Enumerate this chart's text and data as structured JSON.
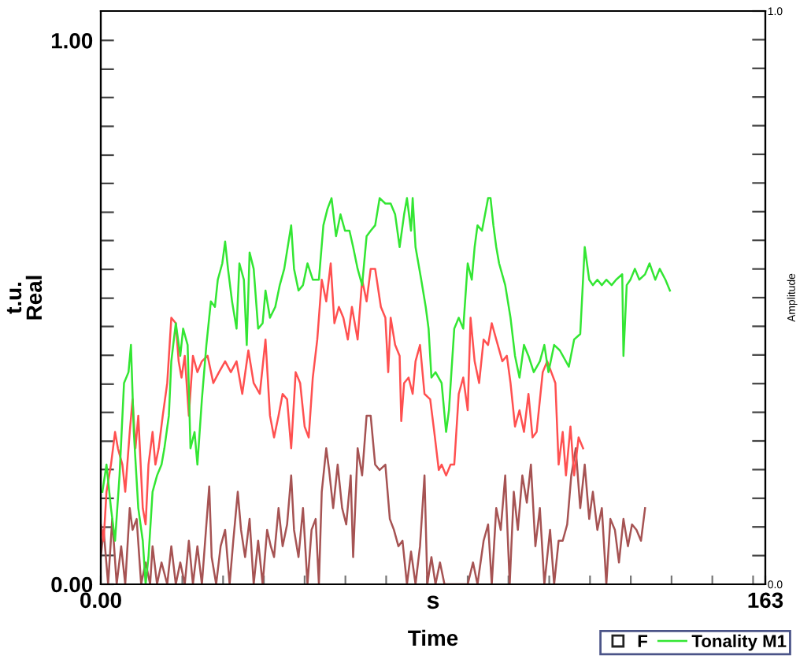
{
  "chart_data": {
    "type": "line",
    "xlabel": "Time",
    "ylabel": "t.u.\nReal",
    "y2label": "Amplitude",
    "annotations": [
      "s",
      "F"
    ],
    "xlim": [
      0,
      163
    ],
    "ylim": [
      0,
      1.054
    ],
    "y2lim": [
      0,
      1
    ],
    "xticks": [
      {
        "value": 0,
        "label": "0.00"
      },
      {
        "value": 10,
        "label": null
      },
      {
        "value": 20,
        "label": null
      },
      {
        "value": 30,
        "label": null
      },
      {
        "value": 40,
        "label": null
      },
      {
        "value": 50,
        "label": null
      },
      {
        "value": 60,
        "label": null
      },
      {
        "value": 70,
        "label": null
      },
      {
        "value": 80,
        "label": null
      },
      {
        "value": 90,
        "label": null
      },
      {
        "value": 100,
        "label": null
      },
      {
        "value": 110,
        "label": null
      },
      {
        "value": 120,
        "label": null
      },
      {
        "value": 130,
        "label": null
      },
      {
        "value": 140,
        "label": null
      },
      {
        "value": 150,
        "label": null
      },
      {
        "value": 160,
        "label": null
      },
      {
        "value": 163,
        "label": "163"
      }
    ],
    "yticks": [
      {
        "value": 0,
        "label": "0.00"
      },
      {
        "value": 0.053,
        "label": null
      },
      {
        "value": 0.105,
        "label": null
      },
      {
        "value": 0.158,
        "label": null
      },
      {
        "value": 0.211,
        "label": null
      },
      {
        "value": 0.263,
        "label": null
      },
      {
        "value": 0.316,
        "label": null
      },
      {
        "value": 0.368,
        "label": null
      },
      {
        "value": 0.421,
        "label": null
      },
      {
        "value": 0.474,
        "label": null
      },
      {
        "value": 0.526,
        "label": null
      },
      {
        "value": 0.579,
        "label": null
      },
      {
        "value": 0.632,
        "label": null
      },
      {
        "value": 0.684,
        "label": null
      },
      {
        "value": 0.737,
        "label": null
      },
      {
        "value": 0.789,
        "label": null
      },
      {
        "value": 0.842,
        "label": null
      },
      {
        "value": 0.895,
        "label": null
      },
      {
        "value": 0.947,
        "label": null
      },
      {
        "value": 1,
        "label": "1.00"
      }
    ],
    "y2ticks": [
      {
        "value": 0,
        "label": "0.0"
      },
      {
        "value": 0.05,
        "label": null
      },
      {
        "value": 0.1,
        "label": null
      },
      {
        "value": 0.15,
        "label": null
      },
      {
        "value": 0.2,
        "label": null
      },
      {
        "value": 0.25,
        "label": null
      },
      {
        "value": 0.3,
        "label": null
      },
      {
        "value": 0.35,
        "label": null
      },
      {
        "value": 0.4,
        "label": null
      },
      {
        "value": 0.45,
        "label": null
      },
      {
        "value": 0.5,
        "label": null
      },
      {
        "value": 0.55,
        "label": null
      },
      {
        "value": 0.6,
        "label": null
      },
      {
        "value": 0.65,
        "label": null
      },
      {
        "value": 0.7,
        "label": null
      },
      {
        "value": 0.75,
        "label": null
      },
      {
        "value": 0.8,
        "label": null
      },
      {
        "value": 0.85,
        "label": null
      },
      {
        "value": 0.9,
        "label": null
      },
      {
        "value": 0.95,
        "label": null
      },
      {
        "value": 1,
        "label": "1.0"
      }
    ],
    "grid": false,
    "legend": "bottom right",
    "line_style": "solid",
    "marker": "none",
    "series": [
      {
        "color": "#a65353",
        "x": [
          0.0,
          0.7,
          1.8,
          2.8,
          3.9,
          5.0,
          6.0,
          7.1,
          7.8,
          8.8,
          9.9,
          11.0,
          12.1,
          12.7,
          13.8,
          14.9,
          16.3,
          17.3,
          18.4,
          19.5,
          20.6,
          21.6,
          22.6,
          23.7,
          24.8,
          25.9,
          26.6,
          27.2,
          28.3,
          29.4,
          30.5,
          31.6,
          32.5,
          33.6,
          34.4,
          35.4,
          36.5,
          37.5,
          38.6,
          39.7,
          40.8,
          41.7,
          42.5,
          43.6,
          44.6,
          45.7,
          46.7,
          47.4,
          48.5,
          49.6,
          50.7,
          51.7,
          52.7,
          53.5,
          54.2,
          55.3,
          56.0,
          57.0,
          58.1,
          59.2,
          60.2,
          61.3,
          61.9,
          63.0,
          64.1,
          65.2,
          66.2,
          67.3,
          68.4,
          69.8,
          70.9,
          71.9,
          73.0,
          74.0,
          75.1,
          76.1,
          77.2,
          78.3,
          79.4,
          80.1,
          81.1,
          82.1,
          83.2,
          84.3,
          90.0,
          91.3,
          92.4,
          93.9,
          95.0,
          95.9,
          97.0,
          98.1,
          99.2,
          100.3,
          101.3,
          102.3,
          103.4,
          104.5,
          105.5,
          106.6,
          107.7,
          108.8,
          110.2,
          111.2,
          112.3,
          113.3,
          114.4,
          115.4,
          116.5,
          117.6,
          118.7,
          119.8,
          120.7,
          121.8,
          122.9,
          124.0,
          125.0,
          126.1,
          127.1,
          128.2,
          129.3,
          130.3,
          131.4,
          132.5,
          133.5
        ],
        "values": [
          0.05,
          0.1,
          0,
          0.12,
          0,
          0.07,
          0,
          0.14,
          0.1,
          0.12,
          0,
          0.04,
          0,
          0.07,
          0,
          0.04,
          0,
          0.07,
          0,
          0.04,
          0,
          0.08,
          0,
          0.07,
          0,
          0.11,
          0.18,
          0.05,
          0,
          0.07,
          0.1,
          0,
          0.08,
          0.17,
          0.1,
          0.05,
          0.12,
          0,
          0.08,
          0,
          0.1,
          0.07,
          0.05,
          0.14,
          0.07,
          0.11,
          0.2,
          0.1,
          0.05,
          0.14,
          0,
          0.1,
          0.12,
          0,
          0.17,
          0.25,
          0.21,
          0.14,
          0.22,
          0.14,
          0.11,
          0.2,
          0.05,
          0.25,
          0.2,
          0.31,
          0.31,
          0.22,
          0.21,
          0.22,
          0.12,
          0.1,
          0.07,
          0.08,
          0,
          0.06,
          0,
          0.07,
          0.2,
          0,
          0.05,
          0,
          0.04,
          0,
          0,
          0.04,
          0,
          0.08,
          0.11,
          0,
          0.14,
          0.1,
          0.2,
          0,
          0.17,
          0.1,
          0.2,
          0.15,
          0.22,
          0.07,
          0.14,
          0,
          0.1,
          0,
          0.08,
          0.08,
          0.11,
          0.2,
          0.25,
          0.14,
          0.22,
          0.12,
          0.17,
          0.1,
          0.14,
          0,
          0.12,
          0.1,
          0.04,
          0.12,
          0.07,
          0.11,
          0.1,
          0.08,
          0.14
        ]
      },
      {
        "color": "#ff5050",
        "x": [
          0.0,
          0.7,
          1.4,
          2.5,
          3.5,
          4.2,
          5.3,
          6.0,
          7.1,
          7.8,
          8.5,
          9.2,
          10.3,
          11.0,
          11.7,
          12.7,
          13.4,
          14.2,
          15.2,
          16.3,
          17.3,
          18.4,
          19.1,
          19.8,
          20.6,
          21.6,
          22.6,
          23.7,
          24.8,
          26.2,
          27.6,
          29.0,
          30.5,
          31.9,
          33.3,
          34.7,
          36.2,
          37.5,
          39.0,
          40.4,
          41.5,
          42.5,
          43.6,
          44.6,
          45.7,
          46.7,
          47.8,
          48.9,
          50.0,
          51.0,
          52.0,
          53.1,
          54.2,
          55.3,
          56.4,
          57.3,
          58.4,
          59.5,
          60.6,
          61.6,
          63.0,
          64.1,
          65.2,
          66.2,
          67.3,
          68.7,
          69.8,
          70.5,
          71.1,
          72.2,
          73.3,
          73.7,
          74.4,
          75.5,
          76.5,
          77.2,
          78.3,
          79.4,
          80.8,
          81.8,
          82.9,
          83.6,
          84.7,
          85.8,
          86.7,
          87.8,
          88.9,
          90.0,
          90.7,
          91.7,
          92.8,
          93.9,
          95.0,
          95.9,
          97.0,
          98.5,
          99.6,
          100.5,
          101.6,
          102.7,
          103.8,
          104.9,
          105.9,
          106.9,
          108.4,
          109.5,
          110.5,
          111.5,
          112.3,
          113.3,
          114.1,
          115.2,
          116.1,
          117.2,
          118.3
        ],
        "values": [
          0.11,
          0.08,
          0.17,
          0.22,
          0.28,
          0.25,
          0.22,
          0.17,
          0.28,
          0.34,
          0.25,
          0.31,
          0.14,
          0.11,
          0.22,
          0.28,
          0.22,
          0.25,
          0.31,
          0.37,
          0.49,
          0.48,
          0.41,
          0.38,
          0.42,
          0.31,
          0.42,
          0.39,
          0.41,
          0.42,
          0.37,
          0.39,
          0.41,
          0.39,
          0.41,
          0.35,
          0.43,
          0.37,
          0.35,
          0.45,
          0.31,
          0.27,
          0.31,
          0.35,
          0.34,
          0.25,
          0.39,
          0.37,
          0.29,
          0.27,
          0.38,
          0.45,
          0.56,
          0.52,
          0.59,
          0.48,
          0.51,
          0.49,
          0.45,
          0.51,
          0.45,
          0.56,
          0.52,
          0.58,
          0.58,
          0.51,
          0.49,
          0.39,
          0.49,
          0.44,
          0.42,
          0.3,
          0.37,
          0.38,
          0.35,
          0.41,
          0.44,
          0.35,
          0.34,
          0.28,
          0.21,
          0.22,
          0.2,
          0.22,
          0.22,
          0.35,
          0.38,
          0.32,
          0.49,
          0.41,
          0.37,
          0.45,
          0.44,
          0.48,
          0.45,
          0.41,
          0.42,
          0.37,
          0.29,
          0.32,
          0.28,
          0.35,
          0.27,
          0.28,
          0.39,
          0.41,
          0.39,
          0.37,
          0.22,
          0.28,
          0.2,
          0.29,
          0.2,
          0.27,
          0.25
        ]
      },
      {
        "name": "Tonality M1",
        "color": "#33e633",
        "x": [
          0.4,
          1.4,
          2.5,
          3.5,
          4.6,
          5.7,
          6.8,
          7.4,
          8.1,
          9.2,
          10.3,
          11.0,
          11.7,
          12.7,
          13.8,
          14.9,
          15.6,
          16.7,
          17.3,
          18.4,
          19.5,
          20.2,
          21.3,
          22.0,
          23.0,
          23.7,
          24.8,
          25.9,
          27.0,
          28.0,
          28.7,
          29.8,
          30.5,
          31.2,
          32.2,
          33.3,
          34.0,
          35.1,
          35.8,
          36.5,
          37.5,
          38.6,
          39.7,
          40.4,
          41.5,
          42.8,
          43.9,
          45.0,
          46.7,
          47.4,
          48.5,
          49.6,
          50.7,
          52.0,
          53.5,
          54.6,
          55.6,
          56.6,
          57.7,
          58.8,
          59.9,
          61.0,
          61.9,
          63.0,
          64.1,
          65.2,
          66.2,
          67.3,
          68.4,
          69.8,
          71.1,
          72.2,
          73.3,
          74.4,
          75.1,
          76.1,
          76.5,
          77.2,
          78.6,
          79.7,
          80.4,
          81.1,
          82.1,
          83.6,
          84.7,
          85.4,
          86.0,
          86.7,
          87.8,
          88.9,
          90.0,
          91.0,
          91.7,
          92.4,
          93.5,
          95.0,
          95.6,
          96.3,
          97.0,
          97.7,
          99.2,
          100.5,
          101.6,
          102.7,
          103.8,
          104.9,
          106.2,
          107.7,
          108.8,
          109.8,
          111.2,
          112.6,
          114.8,
          116.1,
          117.6,
          118.7,
          119.8,
          120.7,
          121.8,
          122.9,
          124.0,
          125.3,
          126.4,
          127.9,
          128.2,
          129.0,
          129.9,
          131.0,
          132.1,
          133.5,
          134.6,
          136.0,
          137.1,
          138.5,
          139.6
        ],
        "values": [
          0.17,
          0.22,
          0.14,
          0.08,
          0.2,
          0.37,
          0.39,
          0.44,
          0.28,
          0.14,
          0.08,
          0.0,
          0.05,
          0.17,
          0.2,
          0.22,
          0.25,
          0.31,
          0.41,
          0.48,
          0.42,
          0.47,
          0.44,
          0.25,
          0.28,
          0.22,
          0.34,
          0.44,
          0.52,
          0.51,
          0.56,
          0.59,
          0.63,
          0.58,
          0.52,
          0.47,
          0.59,
          0.56,
          0.44,
          0.61,
          0.58,
          0.47,
          0.48,
          0.54,
          0.49,
          0.51,
          0.55,
          0.58,
          0.66,
          0.58,
          0.54,
          0.55,
          0.59,
          0.56,
          0.56,
          0.66,
          0.69,
          0.71,
          0.64,
          0.68,
          0.65,
          0.65,
          0.62,
          0.58,
          0.55,
          0.64,
          0.65,
          0.66,
          0.71,
          0.7,
          0.7,
          0.68,
          0.62,
          0.68,
          0.71,
          0.65,
          0.71,
          0.62,
          0.56,
          0.51,
          0.47,
          0.38,
          0.39,
          0.37,
          0.28,
          0.32,
          0.39,
          0.47,
          0.49,
          0.47,
          0.59,
          0.56,
          0.62,
          0.66,
          0.65,
          0.71,
          0.71,
          0.66,
          0.62,
          0.59,
          0.55,
          0.49,
          0.42,
          0.38,
          0.44,
          0.42,
          0.39,
          0.41,
          0.44,
          0.39,
          0.44,
          0.43,
          0.4,
          0.45,
          0.46,
          0.62,
          0.56,
          0.55,
          0.56,
          0.55,
          0.56,
          0.55,
          0.56,
          0.57,
          0.42,
          0.55,
          0.56,
          0.58,
          0.56,
          0.57,
          0.59,
          0.56,
          0.58,
          0.56,
          0.54
        ]
      }
    ]
  }
}
